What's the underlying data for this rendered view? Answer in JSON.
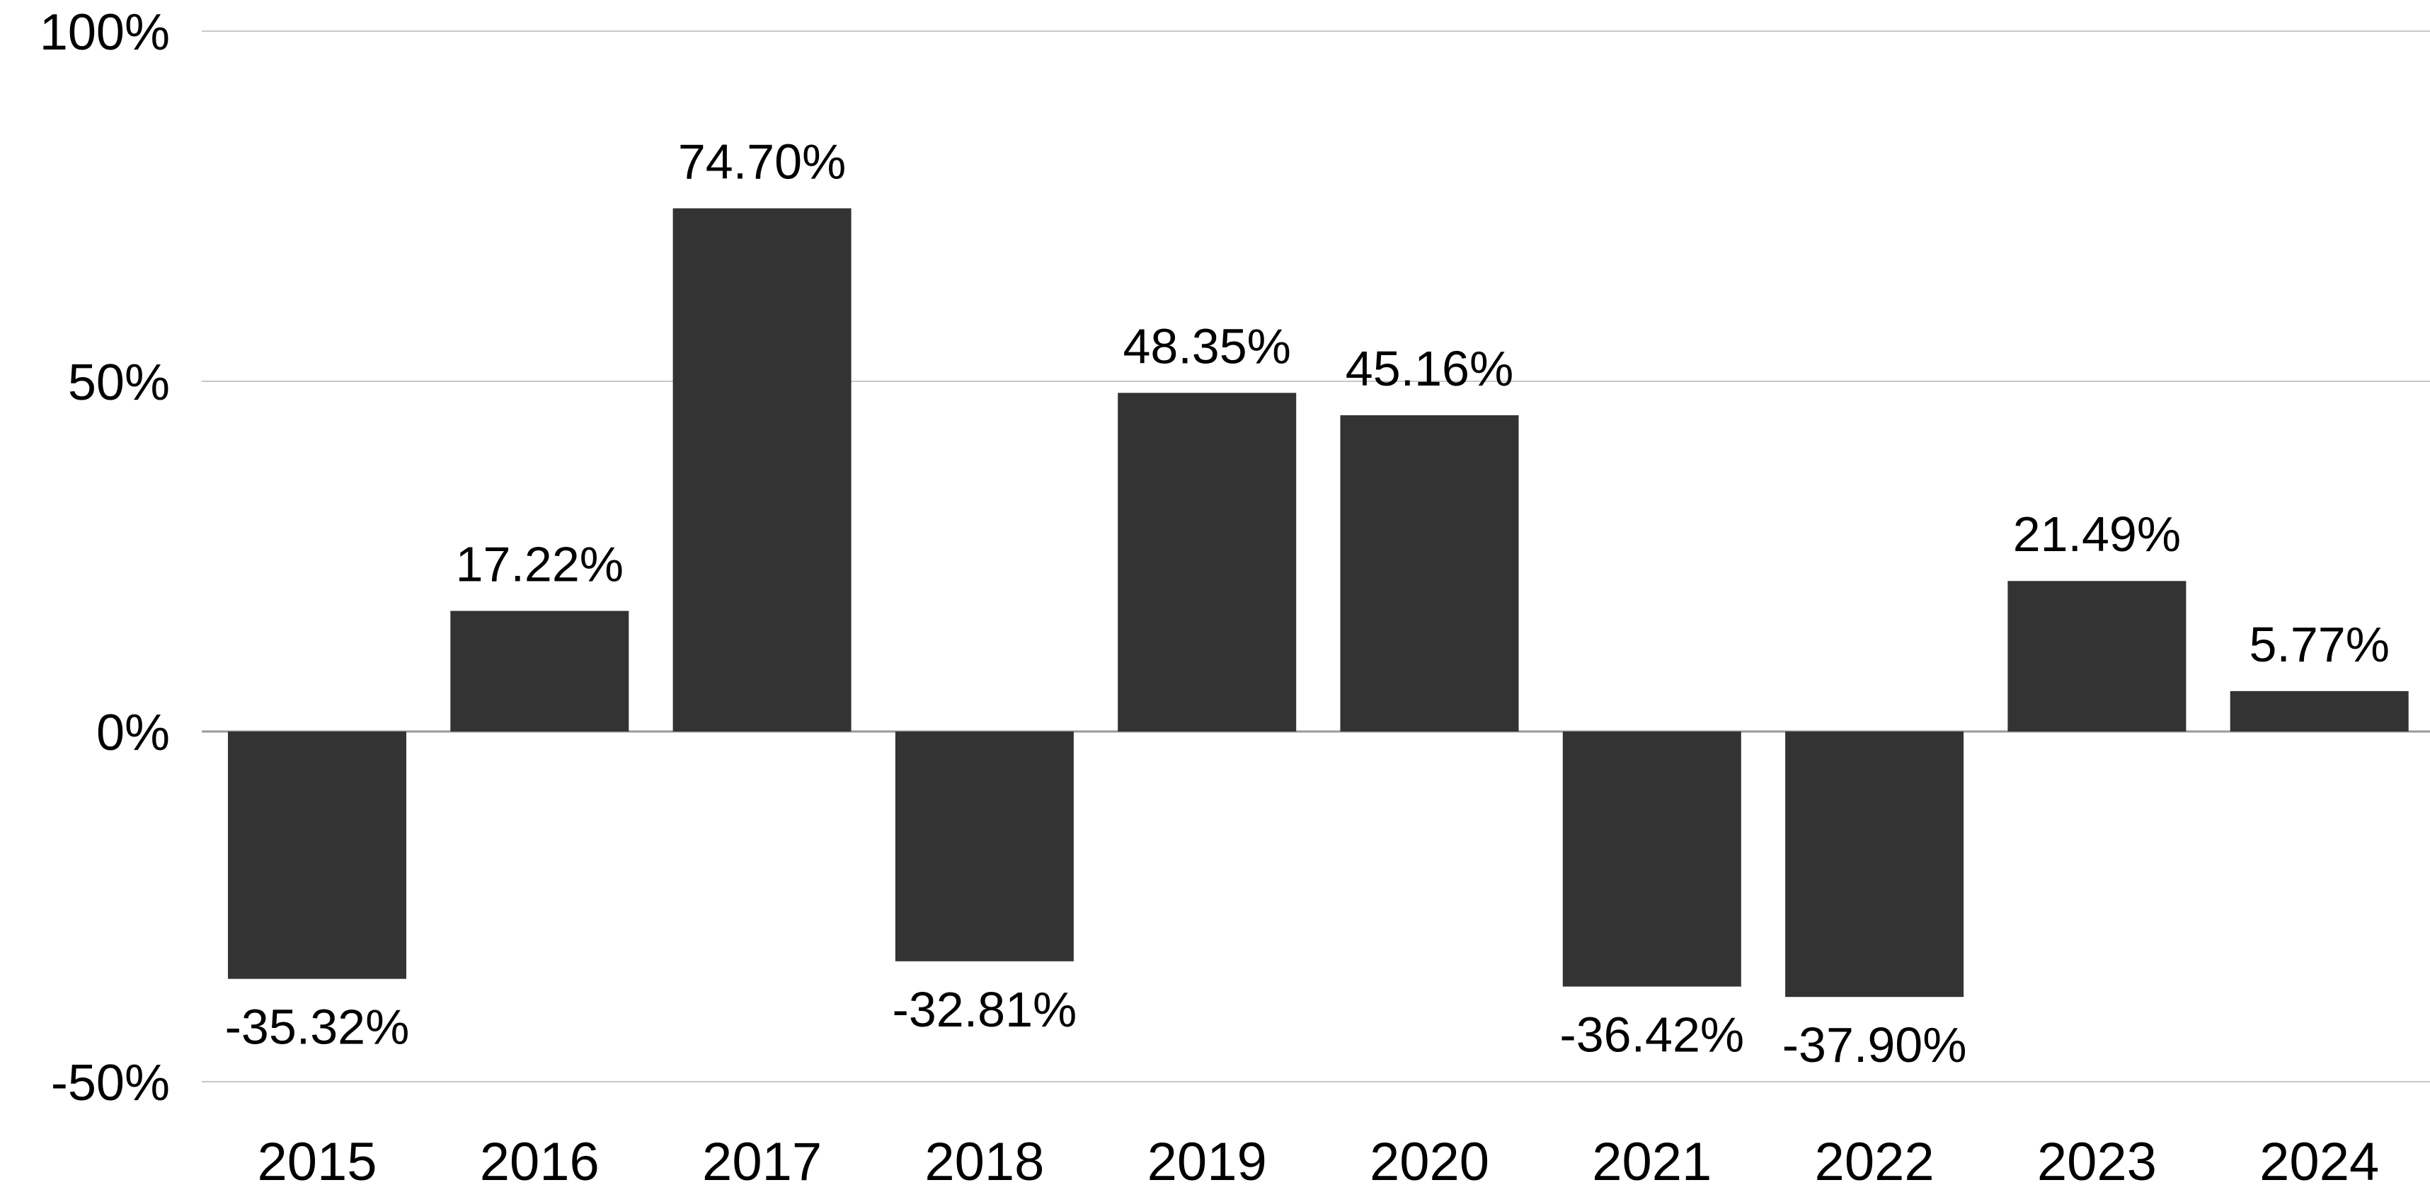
{
  "chart_data": {
    "type": "bar",
    "categories": [
      "2015",
      "2016",
      "2017",
      "2018",
      "2019",
      "2020",
      "2021",
      "2022",
      "2023",
      "2024"
    ],
    "values": [
      -35.32,
      17.22,
      74.7,
      -32.81,
      48.35,
      45.16,
      -36.42,
      -37.9,
      21.49,
      5.77
    ],
    "data_labels": [
      "-35.32%",
      "17.22%",
      "74.70%",
      "-32.81%",
      "48.35%",
      "45.16%",
      "-36.42%",
      "-37.90%",
      "21.49%",
      "5.77%"
    ],
    "ylim": [
      -50,
      100
    ],
    "y_ticks": [
      {
        "value": 100,
        "label": "100%"
      },
      {
        "value": 50,
        "label": "50%"
      },
      {
        "value": 0,
        "label": "0%"
      },
      {
        "value": -50,
        "label": "-50%"
      }
    ],
    "grid": true,
    "legend": "none",
    "bar_color": "#333333",
    "grid_color": "#c8c8c8",
    "zero_line_color": "#999999",
    "title": "",
    "xlabel": "",
    "ylabel": ""
  }
}
